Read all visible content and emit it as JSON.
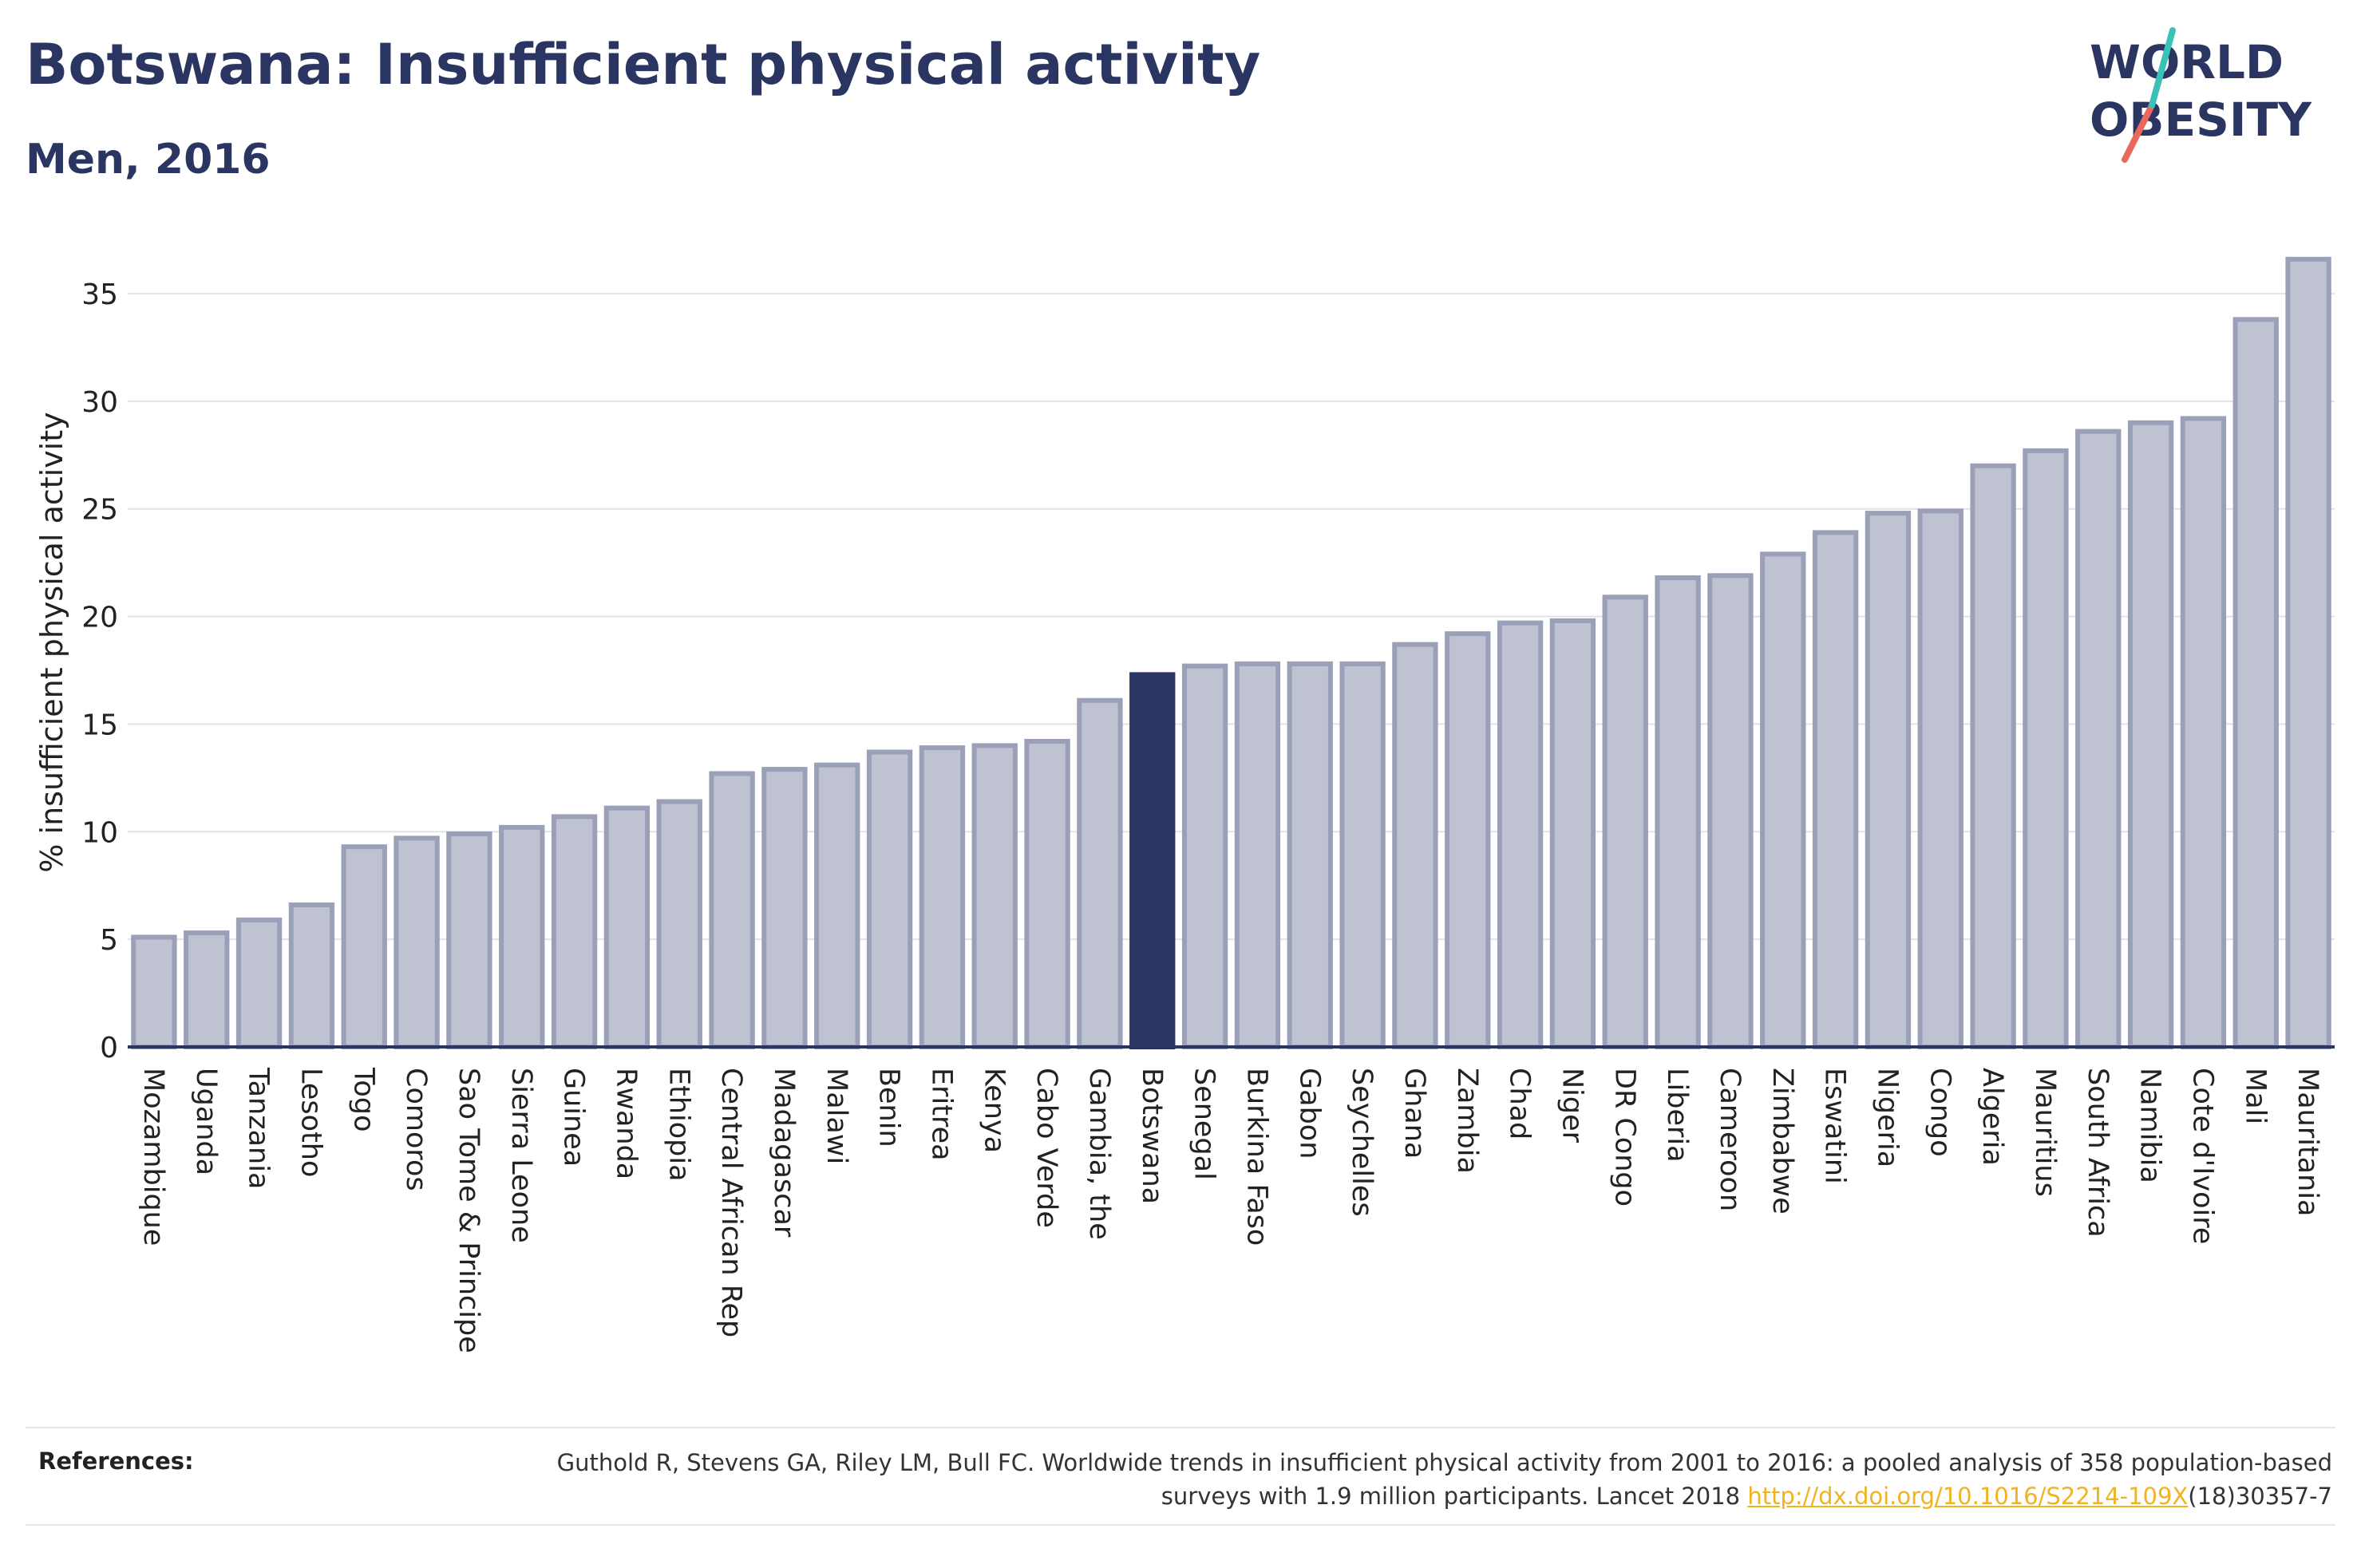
{
  "title": "Botswana: Insufficient physical activity",
  "subtitle": "Men, 2016",
  "logo": {
    "line1": "WORLD",
    "line2": "OBESITY"
  },
  "colors": {
    "bar": "#bfc3d1",
    "bar_stroke": "#9aa0b8",
    "highlight": "#2a3561",
    "text": "#2a3561",
    "link": "#f0b323"
  },
  "references": {
    "label": "References:",
    "text_before": "Guthold R, Stevens GA, Riley LM, Bull FC. Worldwide trends in insufficient physical activity from 2001 to 2016: a pooled analysis of 358 population-based surveys with 1.9 million participants. Lancet 2018 ",
    "link": "http://dx.doi.org/10.1016/S2214-109X",
    "text_after": "(18)30357-7"
  },
  "chart_data": {
    "type": "bar",
    "ylabel": "% insufficient physical activity",
    "ylim": [
      0,
      37
    ],
    "yticks": [
      0,
      5,
      10,
      15,
      20,
      25,
      30,
      35
    ],
    "grid": true,
    "highlight": "Botswana",
    "categories": [
      "Mozambique",
      "Uganda",
      "Tanzania",
      "Lesotho",
      "Togo",
      "Comoros",
      "Sao Tome & Principe",
      "Sierra Leone",
      "Guinea",
      "Rwanda",
      "Ethiopia",
      "Central African Rep",
      "Madagascar",
      "Malawi",
      "Benin",
      "Eritrea",
      "Kenya",
      "Cabo Verde",
      "Gambia, the",
      "Botswana",
      "Senegal",
      "Burkina Faso",
      "Gabon",
      "Seychelles",
      "Ghana",
      "Zambia",
      "Chad",
      "Niger",
      "DR Congo",
      "Liberia",
      "Cameroon",
      "Zimbabwe",
      "Eswatini",
      "Nigeria",
      "Congo",
      "Algeria",
      "Mauritius",
      "South Africa",
      "Namibia",
      "Cote d'Ivoire",
      "Mali",
      "Mauritania"
    ],
    "values": [
      5.1,
      5.3,
      5.9,
      6.6,
      9.3,
      9.7,
      9.9,
      10.2,
      10.7,
      11.1,
      11.4,
      12.7,
      12.9,
      13.1,
      13.7,
      13.9,
      14.0,
      14.2,
      16.1,
      17.3,
      17.7,
      17.8,
      17.8,
      17.8,
      18.7,
      19.2,
      19.7,
      19.8,
      20.9,
      21.8,
      21.9,
      22.9,
      23.9,
      24.8,
      24.9,
      27.0,
      27.7,
      28.6,
      29.0,
      29.2,
      33.8,
      36.6
    ]
  }
}
